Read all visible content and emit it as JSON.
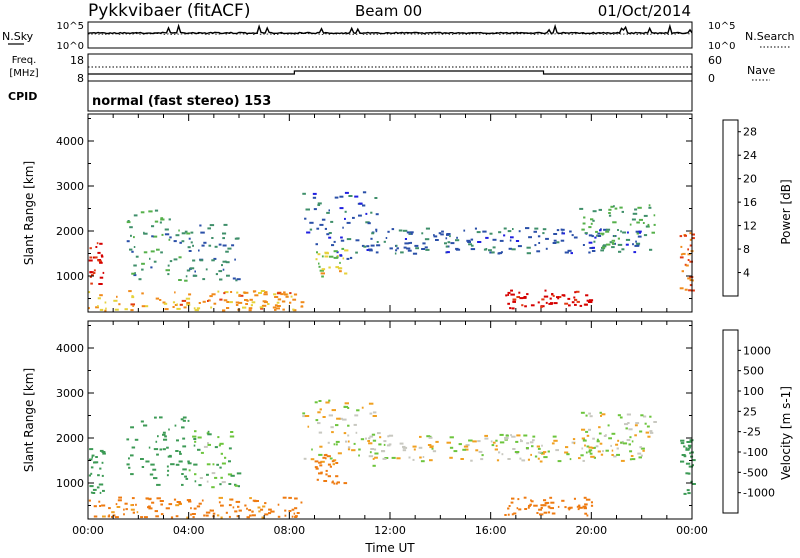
{
  "header": {
    "station": "Pykkvibaer (fitACF)",
    "beam": "Beam 00",
    "date": "01/Oct/2014"
  },
  "noise_panel": {
    "left_label": "N.Sky",
    "right_label": "N.Search",
    "ticks": [
      "10^5",
      "10^0"
    ]
  },
  "freq_panel": {
    "left_label_line1": "Freq.",
    "left_label_line2": "[MHz]",
    "left_ticks": [
      "18",
      "8"
    ],
    "right_label": "Nave",
    "right_ticks": [
      "60",
      "0"
    ]
  },
  "cpid_panel": {
    "label": "CPID",
    "value": "normal (fast stereo) 153"
  },
  "colors": {
    "frame": "#000000",
    "power_scale": [
      "#1f1fe0",
      "#2a4fa8",
      "#3f8f6a",
      "#55b04a",
      "#e6d23a",
      "#f08a1a",
      "#e23a12",
      "#d50000"
    ],
    "velocity_scale": [
      "#2840a8",
      "#2f6aa0",
      "#3c9a55",
      "#6cc43c",
      "#c8c8c0",
      "#f0a020",
      "#ee7a10",
      "#e03010",
      "#d00000"
    ]
  },
  "chart_data": [
    {
      "type": "heatmap",
      "name": "power",
      "ylabel": "Slant Range [km]",
      "yticks": [
        "1000",
        "2000",
        "3000",
        "4000"
      ],
      "ylim": [
        200,
        4600
      ],
      "colorbar_label": "Power [dB]",
      "colorbar_ticks": [
        "4",
        "8",
        "12",
        "16",
        "20",
        "24",
        "28"
      ],
      "colorbar_range": [
        0,
        30
      ],
      "echo_bands": [
        {
          "t_start": 0.0,
          "t_end": 8.5,
          "range_lo": 250,
          "range_hi": 700,
          "value": 20
        },
        {
          "t_start": 0.0,
          "t_end": 0.6,
          "range_lo": 800,
          "range_hi": 1800,
          "value": 26
        },
        {
          "t_start": 1.5,
          "t_end": 4.0,
          "range_lo": 900,
          "range_hi": 2500,
          "value": 10
        },
        {
          "t_start": 4.0,
          "t_end": 6.0,
          "range_lo": 900,
          "range_hi": 2200,
          "value": 8
        },
        {
          "t_start": 8.5,
          "t_end": 11.5,
          "range_lo": 1400,
          "range_hi": 2900,
          "value": 6
        },
        {
          "t_start": 9.0,
          "t_end": 10.2,
          "range_lo": 1000,
          "range_hi": 1700,
          "value": 16
        },
        {
          "t_start": 11.0,
          "t_end": 22.0,
          "range_lo": 1500,
          "range_hi": 2100,
          "value": 6
        },
        {
          "t_start": 16.5,
          "t_end": 20.0,
          "range_lo": 300,
          "range_hi": 700,
          "value": 28
        },
        {
          "t_start": 19.5,
          "t_end": 22.5,
          "range_lo": 1600,
          "range_hi": 2600,
          "value": 12
        },
        {
          "t_start": 23.5,
          "t_end": 24.0,
          "range_lo": 700,
          "range_hi": 2000,
          "value": 22
        }
      ]
    },
    {
      "type": "heatmap",
      "name": "velocity",
      "xlabel": "Time UT",
      "ylabel": "Slant Range [km]",
      "xticks": [
        "00:00",
        "04:00",
        "08:00",
        "12:00",
        "16:00",
        "20:00",
        "00:00"
      ],
      "yticks": [
        "1000",
        "2000",
        "3000",
        "4000"
      ],
      "ylim": [
        200,
        4600
      ],
      "colorbar_label": "Velocity [m s-1]",
      "colorbar_ticks": [
        "1000",
        "500",
        "100",
        "25",
        "-25",
        "-100",
        "-500",
        "-1000"
      ],
      "echo_bands": [
        {
          "t_start": 0.0,
          "t_end": 8.5,
          "range_lo": 250,
          "range_hi": 700,
          "value": -150
        },
        {
          "t_start": 0.0,
          "t_end": 0.6,
          "range_lo": 800,
          "range_hi": 1800,
          "value": 400
        },
        {
          "t_start": 1.5,
          "t_end": 4.0,
          "range_lo": 900,
          "range_hi": 2500,
          "value": 300
        },
        {
          "t_start": 4.0,
          "t_end": 6.0,
          "range_lo": 900,
          "range_hi": 2200,
          "value": 80
        },
        {
          "t_start": 8.5,
          "t_end": 11.5,
          "range_lo": 1400,
          "range_hi": 2900,
          "value": 0
        },
        {
          "t_start": 9.0,
          "t_end": 10.2,
          "range_lo": 1000,
          "range_hi": 1700,
          "value": -300
        },
        {
          "t_start": 11.0,
          "t_end": 22.0,
          "range_lo": 1500,
          "range_hi": 2100,
          "value": 0
        },
        {
          "t_start": 16.5,
          "t_end": 20.0,
          "range_lo": 300,
          "range_hi": 700,
          "value": -200
        },
        {
          "t_start": 19.5,
          "t_end": 22.5,
          "range_lo": 1600,
          "range_hi": 2600,
          "value": 10
        },
        {
          "t_start": 23.5,
          "t_end": 24.0,
          "range_lo": 700,
          "range_hi": 2000,
          "value": 200
        }
      ]
    }
  ]
}
